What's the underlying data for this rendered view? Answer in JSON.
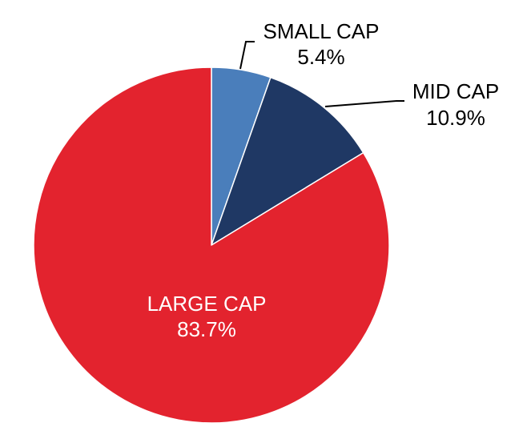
{
  "chart_data": {
    "type": "pie",
    "title": "",
    "series": [
      {
        "name": "",
        "values": [
          5.4,
          10.9,
          83.7
        ]
      }
    ],
    "categories": [
      "SMALL CAP",
      "MID CAP",
      "LARGE CAP"
    ],
    "slices": [
      {
        "label": "SMALL CAP",
        "value": 5.4,
        "value_label": "5.4%",
        "color": "#4A7EBB"
      },
      {
        "label": "MID CAP",
        "value": 10.9,
        "value_label": "10.9%",
        "color": "#1F3864"
      },
      {
        "label": "LARGE CAP",
        "value": 83.7,
        "value_label": "83.7%",
        "color": "#E3232E"
      }
    ],
    "legend": "none",
    "start_angle": "12 o'clock",
    "direction": "clockwise",
    "label_color_outside": "#000000",
    "label_color_inside": "#ffffff",
    "slice_border_color": "#ffffff"
  }
}
